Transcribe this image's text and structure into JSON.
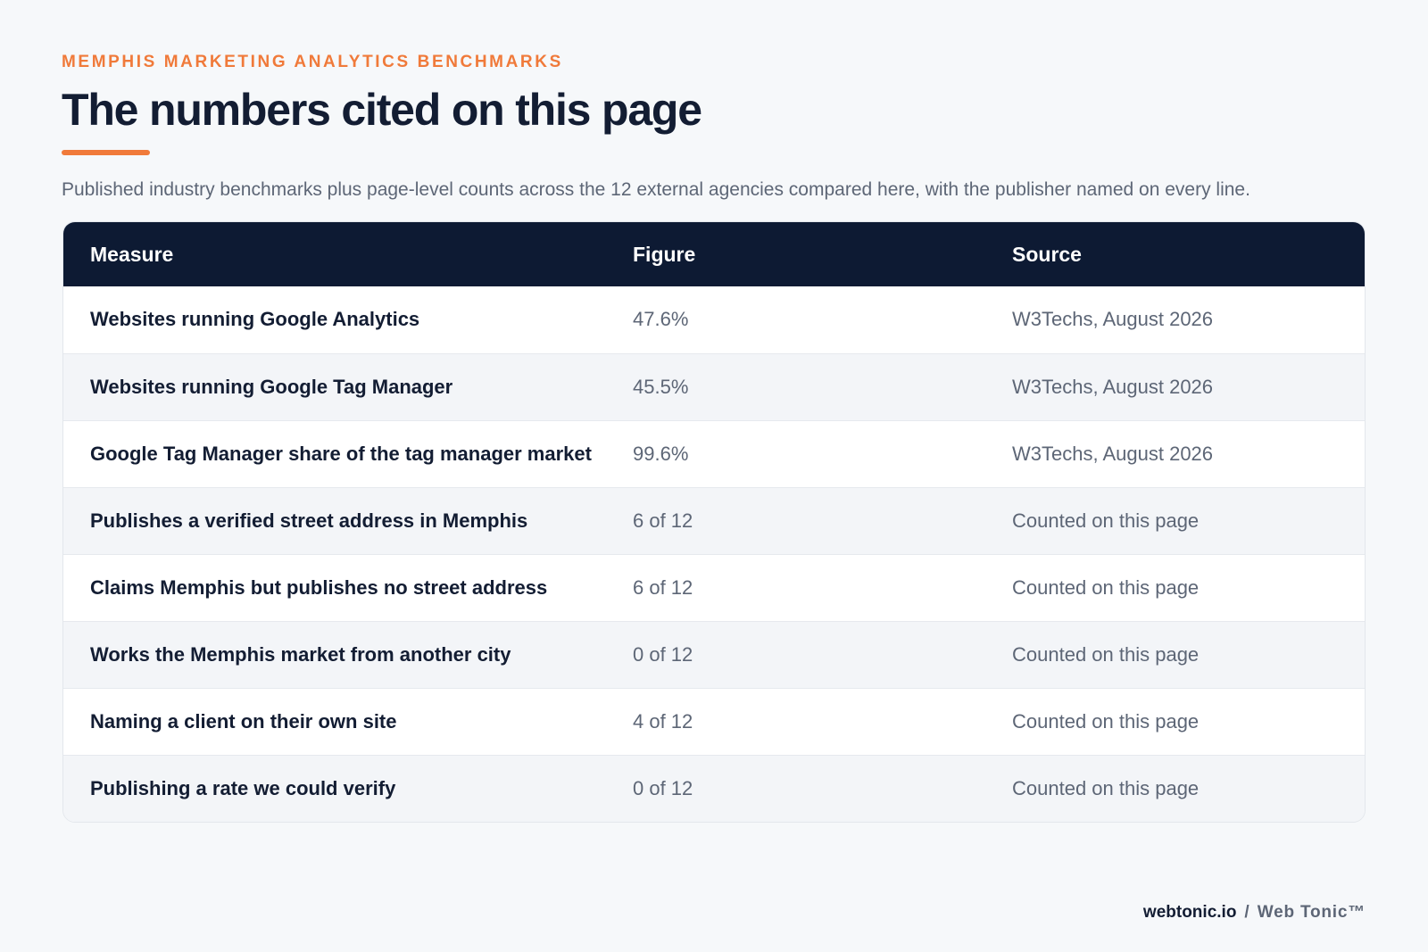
{
  "header": {
    "eyebrow": "MEMPHIS MARKETING ANALYTICS BENCHMARKS",
    "title": "The numbers cited on this page",
    "subtitle": "Published industry benchmarks plus page-level counts across the 12 external agencies compared here, with the publisher named on every line."
  },
  "table": {
    "columns": [
      "Measure",
      "Figure",
      "Source"
    ],
    "rows": [
      {
        "measure": "Websites running Google Analytics",
        "figure": "47.6%",
        "source": "W3Techs, August 2026"
      },
      {
        "measure": "Websites running Google Tag Manager",
        "figure": "45.5%",
        "source": "W3Techs, August 2026"
      },
      {
        "measure": "Google Tag Manager share of the tag manager market",
        "figure": "99.6%",
        "source": "W3Techs, August 2026"
      },
      {
        "measure": "Publishes a verified street address in Memphis",
        "figure": "6 of 12",
        "source": "Counted on this page"
      },
      {
        "measure": "Claims Memphis but publishes no street address",
        "figure": "6 of 12",
        "source": "Counted on this page"
      },
      {
        "measure": "Works the Memphis market from another city",
        "figure": "0 of 12",
        "source": "Counted on this page"
      },
      {
        "measure": "Naming a client on their own site",
        "figure": "4 of 12",
        "source": "Counted on this page"
      },
      {
        "measure": "Publishing a rate we could verify",
        "figure": "0 of 12",
        "source": "Counted on this page"
      }
    ]
  },
  "footer": {
    "domain": "webtonic.io",
    "separator": "/",
    "brand": "Web Tonic™"
  },
  "colors": {
    "accent": "#f07a3a",
    "header_bg": "#0d1a33",
    "page_bg": "#f6f8fa"
  }
}
